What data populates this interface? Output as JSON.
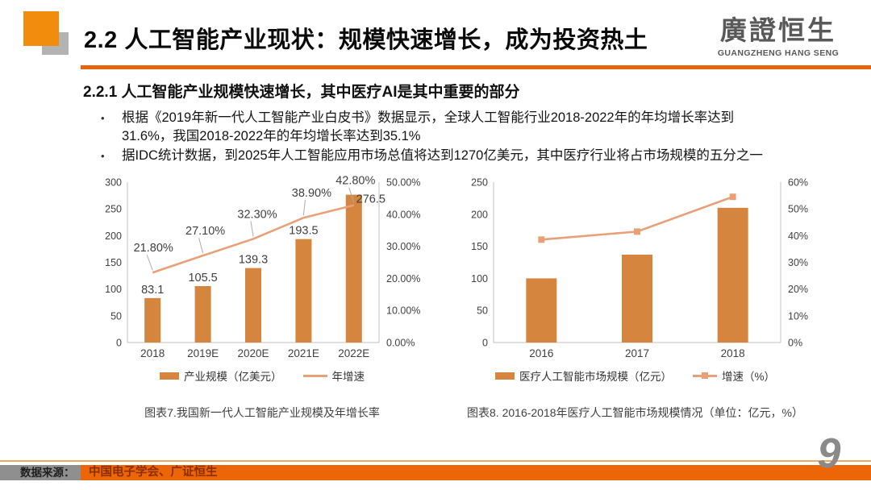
{
  "header": {
    "title": "2.2 人工智能产业现状：规模快速增长，成为投资热土",
    "logo": {
      "cn": "廣證恒生",
      "en": "GUANGZHENG HANG SENG"
    }
  },
  "body": {
    "subtitle": "2.2.1 人工智能产业规模快速增长，其中医疗AI是其中重要的部分",
    "bullets": [
      "根据《2019年新一代人工智能产业白皮书》数据显示，全球人工智能行业2018-2022年的年均增长率达到31.6%，我国2018-2022年的年均增长率达到35.1%",
      "据IDC统计数据，到2025年人工智能应用市场总值将达到1270亿美元，其中医疗行业将占市场规模的五分之一"
    ]
  },
  "chart_data": [
    {
      "type": "bar",
      "title": "图表7.我国新一代人工智能产业规模及年增长率",
      "categories": [
        "2018",
        "2019E",
        "2020E",
        "2021E",
        "2022E"
      ],
      "series": [
        {
          "name": "产业规模（亿美元）",
          "kind": "bar",
          "axis": "left",
          "values": [
            83.1,
            105.5,
            139.3,
            193.5,
            276.5
          ]
        },
        {
          "name": "年增速",
          "kind": "line",
          "axis": "right",
          "values": [
            21.8,
            27.1,
            32.3,
            38.9,
            42.8
          ]
        }
      ],
      "bar_labels": [
        "83.1",
        "105.5",
        "139.3",
        "193.5",
        "276.5"
      ],
      "line_labels": [
        "21.80%",
        "27.10%",
        "32.30%",
        "38.90%",
        "42.80%"
      ],
      "left_axis": {
        "min": 0,
        "max": 300,
        "ticks": [
          "0",
          "50",
          "100",
          "150",
          "200",
          "250",
          "300"
        ]
      },
      "right_axis": {
        "min": 0,
        "max": 50,
        "ticks": [
          "0.00%",
          "10.00%",
          "20.00%",
          "30.00%",
          "40.00%",
          "50.00%"
        ]
      },
      "grid": false,
      "legend_position": "bottom"
    },
    {
      "type": "bar",
      "title": "图表8. 2016-2018年医疗人工智能市场规模情况（单位：亿元，%）",
      "categories": [
        "2016",
        "2017",
        "2018"
      ],
      "series": [
        {
          "name": "医疗人工智能市场规模（亿元）",
          "kind": "bar",
          "axis": "left",
          "values": [
            100,
            137,
            210
          ]
        },
        {
          "name": "增速（%）",
          "kind": "line",
          "axis": "right",
          "values": [
            38.5,
            41.5,
            54.5
          ],
          "marker": "square"
        }
      ],
      "left_axis": {
        "min": 0,
        "max": 250,
        "ticks": [
          "0",
          "50",
          "100",
          "150",
          "200",
          "250"
        ]
      },
      "right_axis": {
        "min": 0,
        "max": 60,
        "ticks": [
          "0%",
          "10%",
          "20%",
          "30%",
          "40%",
          "50%",
          "60%"
        ]
      },
      "grid": false,
      "legend_position": "bottom"
    }
  ],
  "footer": {
    "source_label": "数据来源：",
    "source_value": "中国电子学会、广证恒生",
    "page_number": "9"
  },
  "colors": {
    "accent_orange": "#F28C0D",
    "title_underline": "#E6650B",
    "bar_orange": "#D6853F",
    "line_salmon": "#E9A077",
    "footer_bar_orange": "#EC6608",
    "footer_thin_line": "#E6AC63",
    "footer_gray": "#8F8F8F",
    "source_text": "#8B2E00",
    "logo_gray": "#595959",
    "page_number_gray": "#8A8A8A",
    "axis_line": "#C0C0C0",
    "chart_text": "#404040",
    "leader_line": "#ABABAB"
  }
}
